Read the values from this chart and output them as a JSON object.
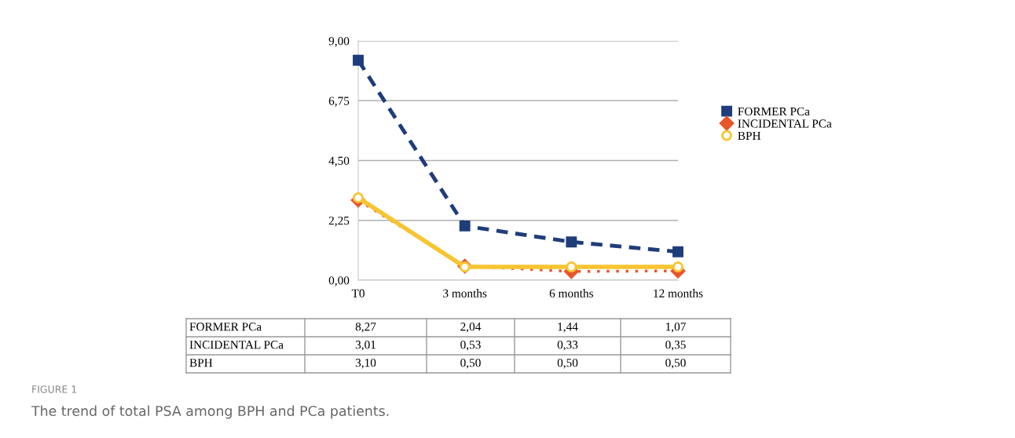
{
  "chart_data": {
    "type": "line",
    "categories": [
      "T0",
      "3 months",
      "6 months",
      "12 months"
    ],
    "series": [
      {
        "name": "FORMER PCa",
        "color": "#1f3d7a",
        "values": [
          8.27,
          2.04,
          1.44,
          1.07
        ],
        "value_labels": [
          "8,27",
          "2,04",
          "1,44",
          "1,07"
        ],
        "marker": "square",
        "line_style": "dashed"
      },
      {
        "name": "INCIDENTAL PCa",
        "color": "#e8562a",
        "values": [
          3.01,
          0.53,
          0.33,
          0.35
        ],
        "value_labels": [
          "3,01",
          "0,53",
          "0,33",
          "0,35"
        ],
        "marker": "diamond",
        "line_style": "dotted"
      },
      {
        "name": "BPH",
        "color": "#f7c531",
        "values": [
          3.1,
          0.5,
          0.5,
          0.5
        ],
        "value_labels": [
          "3,10",
          "0,50",
          "0,50",
          "0,50"
        ],
        "marker": "circle",
        "line_style": "solid"
      }
    ],
    "ylim": [
      0,
      9
    ],
    "yticks": [
      {
        "value": 0,
        "label": "0,00"
      },
      {
        "value": 2.25,
        "label": "2,25"
      },
      {
        "value": 4.5,
        "label": "4,50"
      },
      {
        "value": 6.75,
        "label": "6,75"
      },
      {
        "value": 9,
        "label": "9,00"
      }
    ],
    "grid": "y",
    "legend": "right",
    "annotations": [
      "FIGURE 1",
      "The trend of total PSA among BPH and PCa patients."
    ]
  }
}
